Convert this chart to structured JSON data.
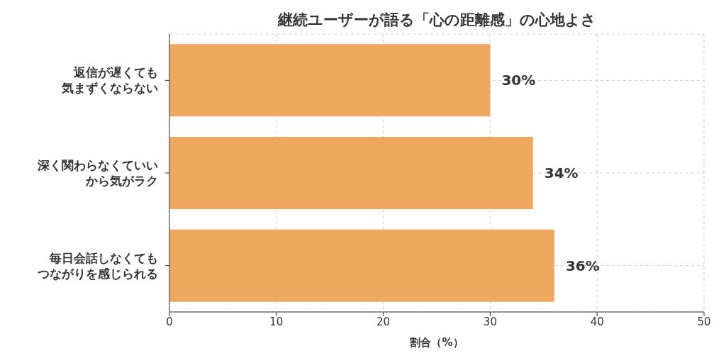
{
  "chart_data": {
    "type": "bar",
    "orientation": "horizontal",
    "title": "継続ユーザーが語る「心の距離感」の心地よさ",
    "xlabel": "割合（%）",
    "categories": [
      "返信が遅くても気まずくならない",
      "深く関わらなくていいから気がラク",
      "毎日会話しなくてもつながりを感じられる"
    ],
    "values": [
      30,
      34,
      36
    ],
    "color": "#f0a75e",
    "value_labels": [
      "30%",
      "34%",
      "36%"
    ],
    "xlim": [
      0,
      50
    ],
    "xticks": [
      0,
      10,
      20,
      30,
      40,
      50
    ],
    "grid": true
  }
}
